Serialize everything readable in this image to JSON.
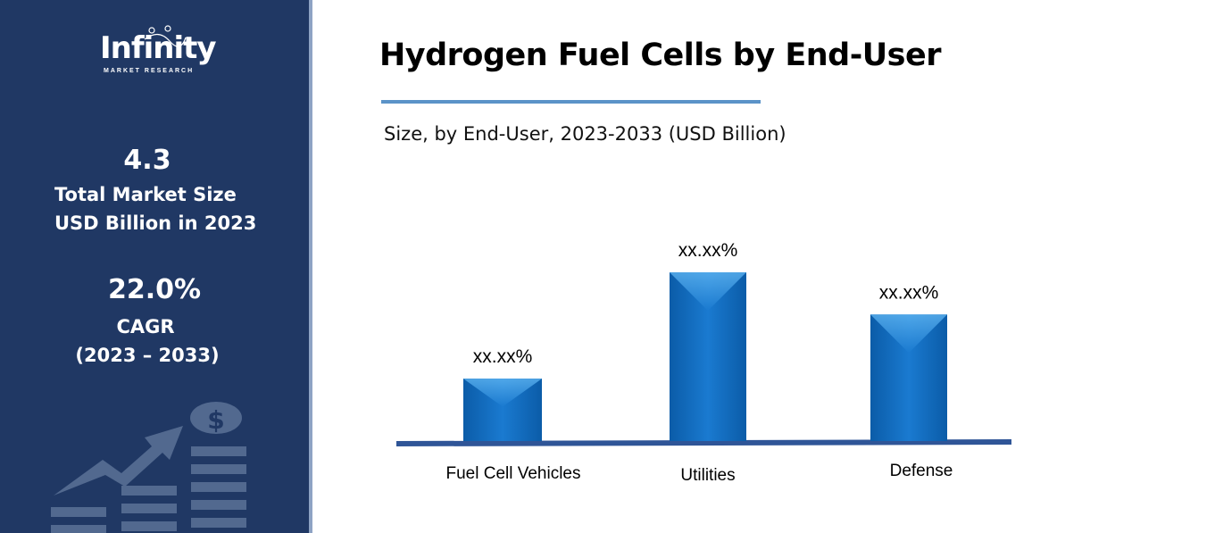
{
  "sidebar": {
    "logo_text": "Infinity",
    "logo_subtext": "MARKET RESEARCH",
    "market_size": "4.3",
    "market_size_label_1": "Total Market Size",
    "market_size_label_2": "USD Billion in 2023",
    "cagr": "22.0%",
    "cagr_label": "CAGR",
    "cagr_period": "(2023 – 2033)",
    "icon": "growth-chart-dollar-icon"
  },
  "colors": {
    "sidebar": "#203864",
    "bar": "#1a73c4",
    "axis": "#2f5597",
    "rule": "#5b93c8"
  },
  "chart_data": {
    "type": "bar",
    "title": "Hydrogen Fuel Cells by End-User",
    "subtitle": "Size, by End-User, 2023-2033 (USD Billion)",
    "categories": [
      "Fuel Cell Vehicles",
      "Utilities",
      "Defense"
    ],
    "values": [
      0.37,
      1.0,
      0.75
    ],
    "data_labels": [
      "xx.xx%",
      "xx.xx%",
      "xx.xx%"
    ],
    "grid": false,
    "legend": "none"
  }
}
